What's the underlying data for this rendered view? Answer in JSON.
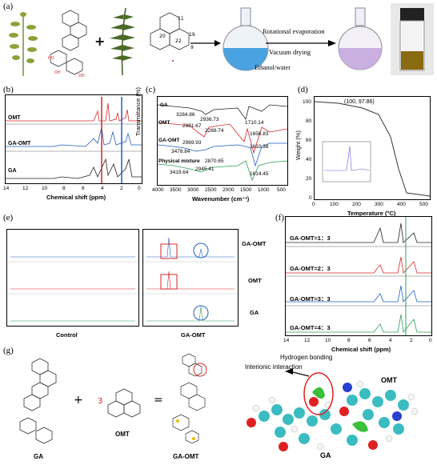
{
  "panel_labels": {
    "a": "(a)",
    "b": "(b)",
    "c": "(c)",
    "d": "(d)",
    "e": "(e)",
    "f": "(f)",
    "g": "(g)"
  },
  "panel_a": {
    "numbers": [
      "11",
      "19",
      "20",
      "22",
      "9"
    ],
    "process_top": "Rotational evaporation",
    "process_bottom": "Vacuum drying",
    "solvent": "Ethanol/water"
  },
  "panel_b": {
    "traces": [
      "OMT",
      "GA-OMT",
      "GA"
    ],
    "xlabel": "Chemical shift (ppm)",
    "xticks": [
      "14",
      "12",
      "10",
      "8",
      "6",
      "4",
      "2",
      "0"
    ]
  },
  "panel_c": {
    "ylabel": "Transmittance (%)",
    "xlabel": "Wavenumber (cm⁻¹)",
    "xticks": [
      "4000",
      "3500",
      "3000",
      "2500",
      "2000",
      "1500",
      "1000",
      "500"
    ],
    "traces": [
      "GA",
      "OMT",
      "GA-OMT",
      "Physical mixture"
    ],
    "peaks": [
      "3284.86",
      "2936.73",
      "2981.67",
      "1710.14",
      "2288.74",
      "2969.93",
      "1656.83",
      "3478.84",
      "1610.38",
      "2870.65",
      "3419.64",
      "2945.41",
      "1614.45"
    ]
  },
  "panel_d": {
    "ylabel": "Weight (%)",
    "xlabel": "Temperature (°C)",
    "annotation": "(100, 97.86)",
    "xticks": [
      "0",
      "100",
      "200",
      "300",
      "400",
      "500"
    ],
    "yticks": [
      "100",
      "80",
      "60",
      "40",
      "20",
      "0"
    ]
  },
  "panel_e": {
    "rows": [
      "GA-OMT",
      "OMT",
      "GA"
    ],
    "bottom_left": "Control",
    "bottom_right": "GA-OMT"
  },
  "panel_f": {
    "rows": [
      "GA-OMT=1：3",
      "GA-OMT=2：3",
      "GA-OMT=3：3",
      "GA-OMT=4：3"
    ],
    "xlabel": "Chemical shift (ppm)",
    "xticks": [
      "14",
      "12",
      "10",
      "8",
      "6",
      "4",
      "2",
      "0"
    ]
  },
  "panel_g": {
    "ga": "GA",
    "omt": "OMT",
    "gaomt": "GA-OMT",
    "hb1": "Hydrogen bonding",
    "hb2": "Interionic interaction",
    "mol_omt": "OMT",
    "mol_ga": "GA",
    "plus": "+",
    "eq": "=",
    "three": "3"
  },
  "colors": {
    "red": "#d62728",
    "blue": "#1f5fbf",
    "green": "#2ca05a",
    "black": "#222222",
    "purple": "#c9b0e0",
    "amber": "#8a6a10"
  }
}
